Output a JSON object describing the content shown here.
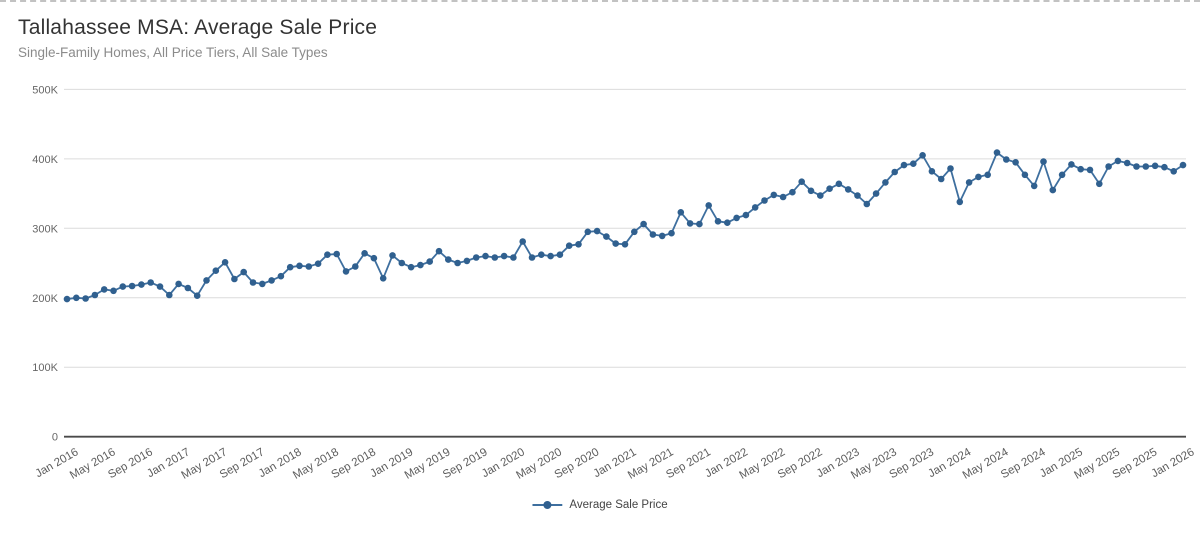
{
  "header": {
    "title": "Tallahassee MSA: Average Sale Price",
    "subtitle": "Single-Family Homes, All Price Tiers, All Sale Types"
  },
  "legend": {
    "series_label": "Average Sale Price"
  },
  "colors": {
    "line": "#3e6f9f",
    "point": "#30608f",
    "grid": "#dcdcdc",
    "axis_line": "#4a4a4a",
    "y_tick_label": "#666666",
    "x_tick_label": "#5d5d5d",
    "title_text": "#333333",
    "subtitle_text": "#8b8b8b"
  },
  "chart_data": {
    "type": "line",
    "title": "Tallahassee MSA: Average Sale Price",
    "subtitle": "Single-Family Homes, All Price Tiers, All Sale Types",
    "xlabel": "",
    "ylabel": "",
    "grid": "horizontal",
    "legend_position": "bottom-center",
    "ylim_usd": [
      0,
      500000
    ],
    "y_tick_labels": [
      "0",
      "100K",
      "200K",
      "300K",
      "400K",
      "500K"
    ],
    "x_tick_labels": [
      "Jan 2016",
      "May 2016",
      "Sep 2016",
      "Jan 2017",
      "May 2017",
      "Sep 2017",
      "Jan 2018",
      "May 2018",
      "Sep 2018",
      "Jan 2019",
      "May 2019",
      "Sep 2019",
      "Jan 2020",
      "May 2020",
      "Sep 2020",
      "Jan 2021",
      "May 2021",
      "Sep 2021",
      "Jan 2022",
      "May 2022",
      "Sep 2022",
      "Jan 2023",
      "May 2023",
      "Sep 2023",
      "Jan 2024",
      "May 2024",
      "Sep 2024",
      "Jan 2025",
      "May 2025",
      "Sep 2025",
      "Jan 2026"
    ],
    "x_tick_every_n_months": 4,
    "series": [
      {
        "name": "Average Sale Price",
        "frequency": "monthly",
        "start_month": "Jan 2016",
        "end_month": "Jan 2026",
        "values_unit": "USD thousands",
        "values_k_usd": [
          198,
          200,
          199,
          204,
          212,
          210,
          216,
          217,
          219,
          222,
          216,
          204,
          220,
          214,
          203,
          225,
          239,
          251,
          227,
          237,
          222,
          220,
          225,
          231,
          244,
          246,
          245,
          249,
          262,
          263,
          238,
          245,
          264,
          257,
          228,
          261,
          250,
          244,
          247,
          252,
          267,
          255,
          250,
          253,
          258,
          260,
          258,
          260,
          258,
          281,
          258,
          262,
          260,
          262,
          275,
          277,
          295,
          296,
          288,
          278,
          277,
          295,
          306,
          291,
          289,
          293,
          323,
          307,
          306,
          333,
          310,
          308,
          315,
          319,
          330,
          340,
          348,
          345,
          352,
          367,
          354,
          347,
          357,
          364,
          356,
          347,
          335,
          350,
          366,
          381,
          391,
          393,
          405,
          382,
          371,
          386,
          338,
          366,
          374,
          377,
          409,
          399,
          395,
          377,
          361,
          396,
          355,
          377,
          392,
          385,
          384,
          364,
          389,
          397,
          394,
          389,
          389,
          390,
          388,
          382,
          391
        ]
      }
    ]
  }
}
